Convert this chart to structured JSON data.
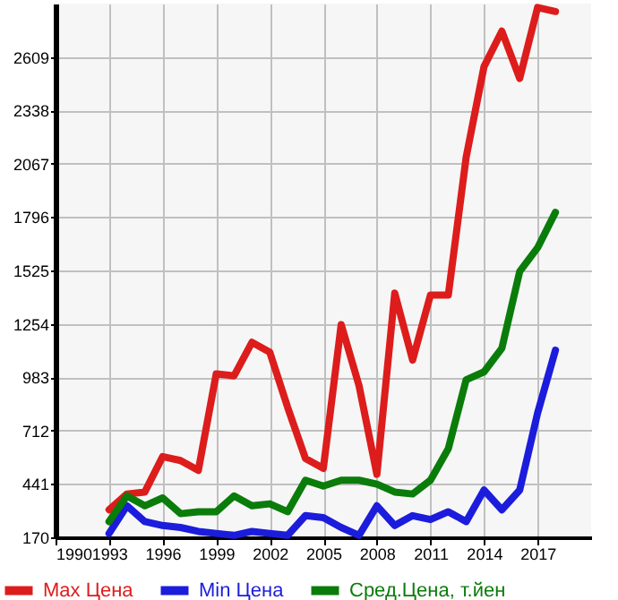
{
  "chart_data": {
    "type": "line",
    "x": [
      1993,
      1994,
      1995,
      1996,
      1997,
      1998,
      1999,
      2000,
      2001,
      2002,
      2003,
      2004,
      2005,
      2006,
      2007,
      2008,
      2009,
      2010,
      2011,
      2012,
      2013,
      2014,
      2015,
      2016,
      2017,
      2018
    ],
    "series": [
      {
        "name": "Max Цена",
        "color": "#dd1c1c",
        "values": [
          310,
          390,
          400,
          580,
          560,
          510,
          1000,
          990,
          1160,
          1110,
          830,
          570,
          520,
          1250,
          940,
          490,
          1410,
          1070,
          1400,
          1400,
          2100,
          2560,
          2740,
          2500,
          2860,
          2840
        ]
      },
      {
        "name": "Min Цена",
        "color": "#1c1cdd",
        "values": [
          190,
          330,
          250,
          230,
          220,
          200,
          190,
          180,
          200,
          190,
          180,
          280,
          270,
          220,
          180,
          330,
          230,
          280,
          260,
          300,
          250,
          410,
          310,
          410,
          800,
          1120
        ]
      },
      {
        "name": "Сред.Цена, т.йен",
        "color": "#0a7c0a",
        "values": [
          250,
          380,
          330,
          370,
          290,
          300,
          300,
          380,
          330,
          340,
          300,
          460,
          430,
          460,
          460,
          440,
          400,
          390,
          460,
          620,
          970,
          1010,
          1130,
          1520,
          1640,
          1820
        ]
      }
    ],
    "xlim": [
      1990,
      2020
    ],
    "xticks": [
      1990,
      1993,
      1996,
      1999,
      2002,
      2005,
      2008,
      2011,
      2014,
      2017
    ],
    "ylim": [
      170,
      2880
    ],
    "yticks": [
      170,
      441,
      712,
      983,
      1254,
      1525,
      1796,
      2067,
      2338,
      2609
    ],
    "grid": true,
    "legend": "bottom",
    "marker": "none",
    "line_style": "solid"
  }
}
